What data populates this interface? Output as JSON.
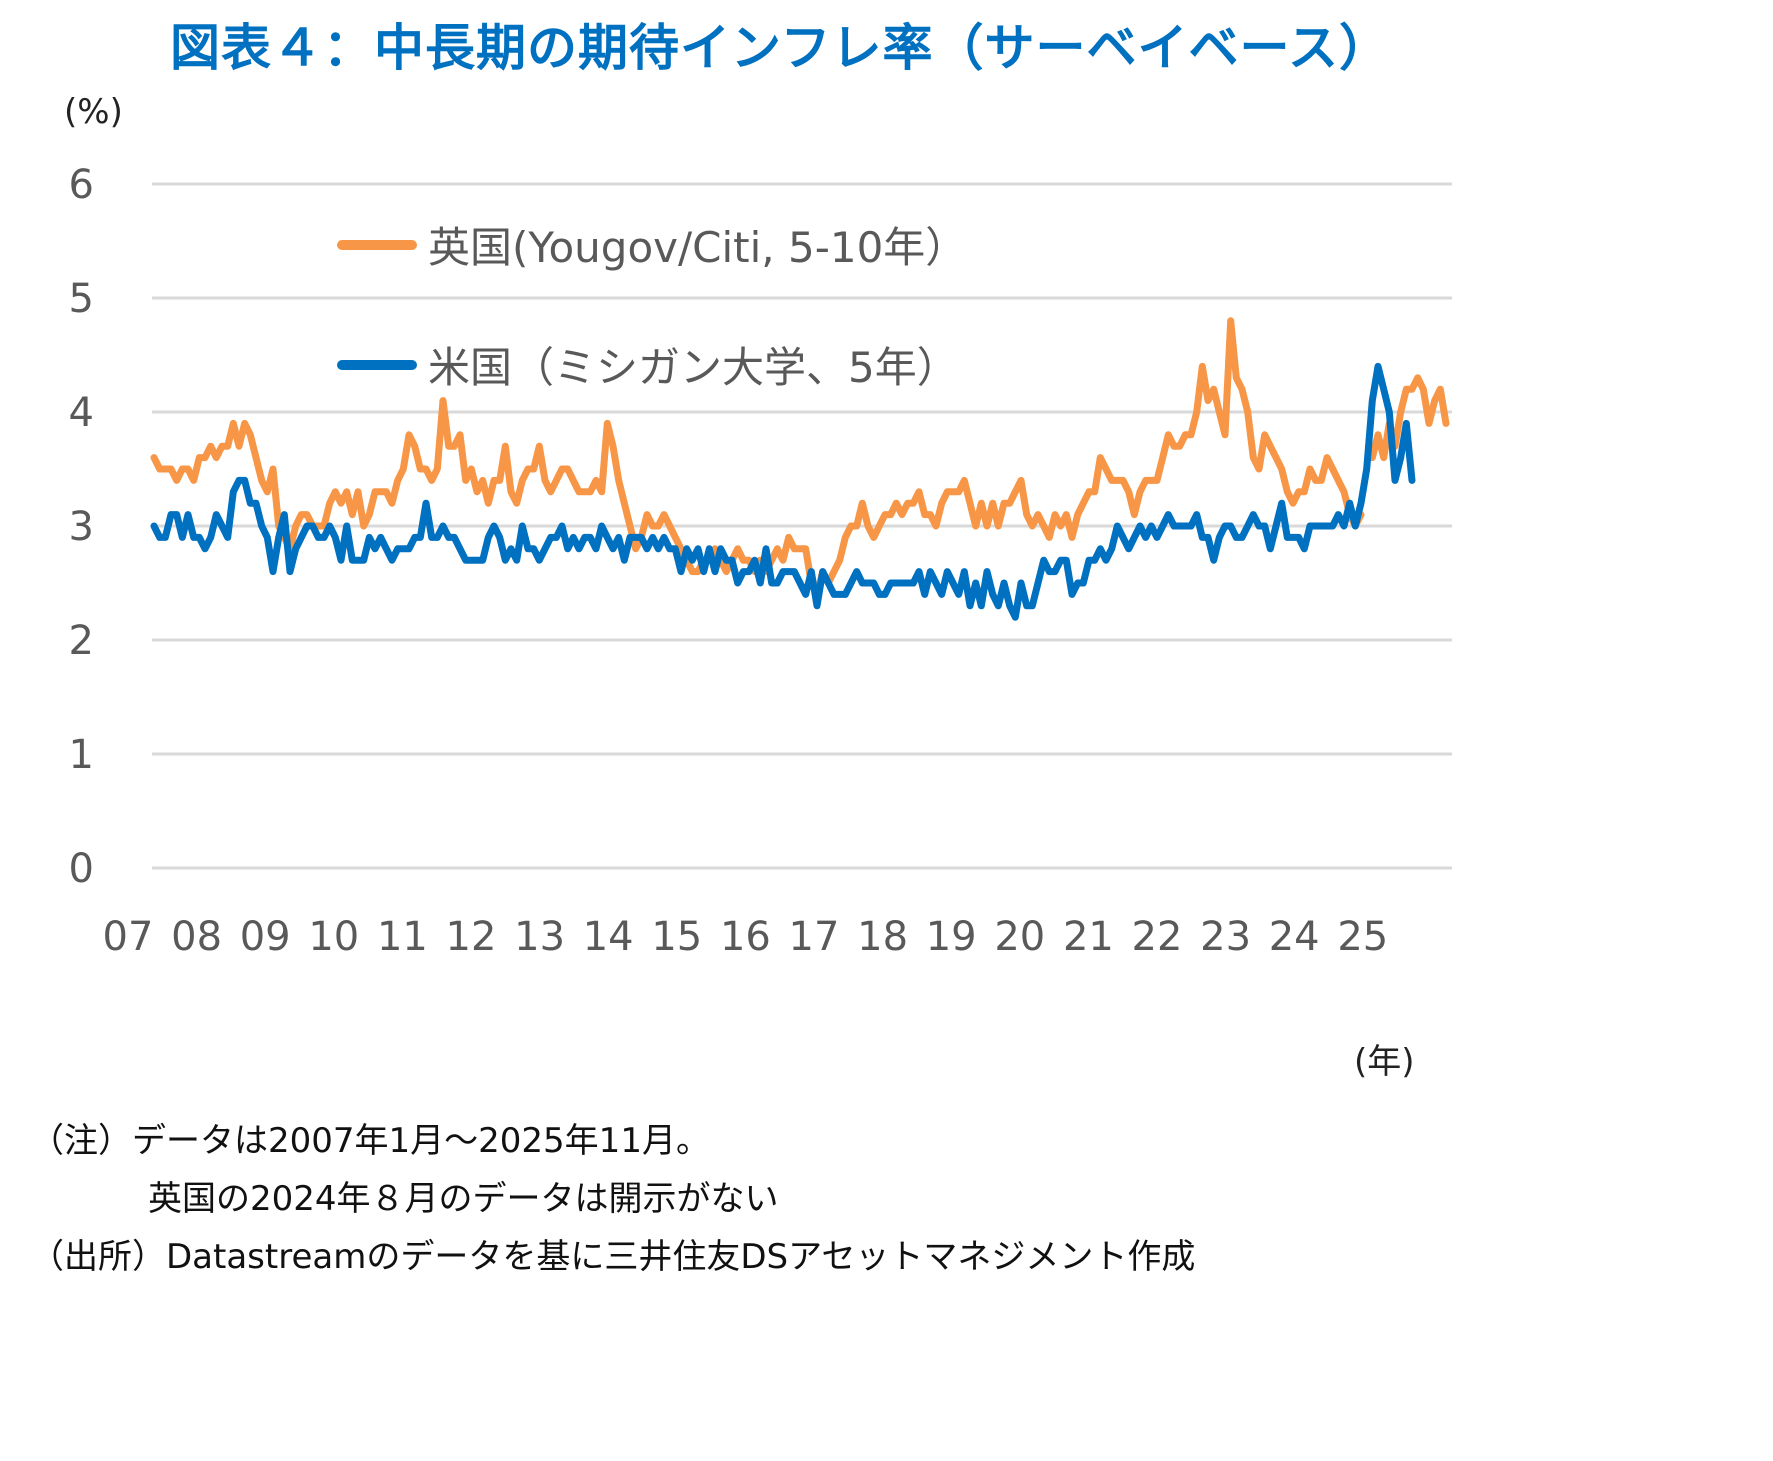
{
  "title": "図表４：中長期の期待インフレ率（サーベイベース）",
  "y_unit": "(%)",
  "x_unit": "(年)",
  "notes": {
    "note_line1": "（注）データは2007年1月～2025年11月。",
    "note_line2": "英国の2024年８月のデータは開示がない",
    "source": "（出所）Datastreamのデータを基に三井住友DSアセットマネジメント作成"
  },
  "colors": {
    "title": "#0070C0",
    "uk": "#F79646",
    "us": "#0070C0",
    "grid": "#D9D9D9",
    "axis_text": "#595959"
  },
  "chart_data": {
    "type": "line",
    "title": "図表４：中長期の期待インフレ率（サーベイベース）",
    "xlabel": "(年)",
    "ylabel": "(%)",
    "ylim": [
      0,
      6
    ],
    "yticks": [
      0,
      1,
      2,
      3,
      4,
      5,
      6
    ],
    "xticks": [
      "07",
      "08",
      "09",
      "10",
      "11",
      "12",
      "13",
      "14",
      "15",
      "16",
      "17",
      "18",
      "19",
      "20",
      "21",
      "22",
      "23",
      "24",
      "25"
    ],
    "grid": true,
    "legend_position": "upper-left inside",
    "x_start": "2007-01",
    "x_end": "2025-11",
    "frequency": "monthly",
    "series": [
      {
        "name": "英国(Yougov/Citi, 5-10年)",
        "color": "#F79646",
        "values": [
          3.6,
          3.5,
          3.5,
          3.5,
          3.4,
          3.5,
          3.5,
          3.4,
          3.6,
          3.6,
          3.7,
          3.6,
          3.7,
          3.7,
          3.9,
          3.7,
          3.9,
          3.8,
          3.6,
          3.4,
          3.3,
          3.5,
          3.0,
          2.9,
          2.8,
          3.0,
          3.1,
          3.1,
          3.0,
          3.0,
          3.0,
          3.2,
          3.3,
          3.2,
          3.3,
          3.1,
          3.3,
          3.0,
          3.1,
          3.3,
          3.3,
          3.3,
          3.2,
          3.4,
          3.5,
          3.8,
          3.7,
          3.5,
          3.5,
          3.4,
          3.5,
          4.1,
          3.7,
          3.7,
          3.8,
          3.4,
          3.5,
          3.3,
          3.4,
          3.2,
          3.4,
          3.4,
          3.7,
          3.3,
          3.2,
          3.4,
          3.5,
          3.5,
          3.7,
          3.4,
          3.3,
          3.4,
          3.5,
          3.5,
          3.4,
          3.3,
          3.3,
          3.3,
          3.4,
          3.3,
          3.9,
          3.7,
          3.4,
          3.2,
          3.0,
          2.8,
          2.9,
          3.1,
          3.0,
          3.0,
          3.1,
          3.0,
          2.9,
          2.8,
          2.7,
          2.6,
          2.6,
          2.7,
          2.7,
          2.8,
          2.7,
          2.6,
          2.7,
          2.8,
          2.7,
          2.7,
          2.6,
          2.7,
          2.6,
          2.7,
          2.8,
          2.7,
          2.9,
          2.8,
          2.8,
          2.8,
          2.5,
          2.4,
          2.6,
          2.5,
          2.6,
          2.7,
          2.9,
          3.0,
          3.0,
          3.2,
          3.0,
          2.9,
          3.0,
          3.1,
          3.1,
          3.2,
          3.1,
          3.2,
          3.2,
          3.3,
          3.1,
          3.1,
          3.0,
          3.2,
          3.3,
          3.3,
          3.3,
          3.4,
          3.2,
          3.0,
          3.2,
          3.0,
          3.2,
          3.0,
          3.2,
          3.2,
          3.3,
          3.4,
          3.1,
          3.0,
          3.1,
          3.0,
          2.9,
          3.1,
          3.0,
          3.1,
          2.9,
          3.1,
          3.2,
          3.3,
          3.3,
          3.6,
          3.5,
          3.4,
          3.4,
          3.4,
          3.3,
          3.1,
          3.3,
          3.4,
          3.4,
          3.4,
          3.6,
          3.8,
          3.7,
          3.7,
          3.8,
          3.8,
          4.0,
          4.4,
          4.1,
          4.2,
          4.0,
          3.8,
          4.8,
          4.3,
          4.2,
          4.0,
          3.6,
          3.5,
          3.8,
          3.7,
          3.6,
          3.5,
          3.3,
          3.2,
          3.3,
          3.3,
          3.5,
          3.4,
          3.4,
          3.6,
          3.5,
          3.4,
          3.3,
          3.1,
          3.0,
          3.1,
          null,
          3.6,
          3.8,
          3.6,
          3.9,
          3.7,
          4.0,
          4.2,
          4.2,
          4.3,
          4.2,
          3.9,
          4.1,
          4.2,
          3.9
        ]
      },
      {
        "name": "米国（ミシガン大学、5年）",
        "color": "#0070C0",
        "values": [
          3.0,
          2.9,
          2.9,
          3.1,
          3.1,
          2.9,
          3.1,
          2.9,
          2.9,
          2.8,
          2.9,
          3.1,
          3.0,
          2.9,
          3.3,
          3.4,
          3.4,
          3.2,
          3.2,
          3.0,
          2.9,
          2.6,
          2.9,
          3.1,
          2.6,
          2.8,
          2.9,
          3.0,
          3.0,
          2.9,
          2.9,
          3.0,
          2.9,
          2.7,
          3.0,
          2.7,
          2.7,
          2.7,
          2.9,
          2.8,
          2.9,
          2.8,
          2.7,
          2.8,
          2.8,
          2.8,
          2.9,
          2.9,
          3.2,
          2.9,
          2.9,
          3.0,
          2.9,
          2.9,
          2.8,
          2.7,
          2.7,
          2.7,
          2.7,
          2.9,
          3.0,
          2.9,
          2.7,
          2.8,
          2.7,
          3.0,
          2.8,
          2.8,
          2.7,
          2.8,
          2.9,
          2.9,
          3.0,
          2.8,
          2.9,
          2.8,
          2.9,
          2.9,
          2.8,
          3.0,
          2.9,
          2.8,
          2.9,
          2.7,
          2.9,
          2.9,
          2.9,
          2.8,
          2.9,
          2.8,
          2.9,
          2.8,
          2.8,
          2.6,
          2.8,
          2.7,
          2.8,
          2.6,
          2.8,
          2.6,
          2.8,
          2.7,
          2.7,
          2.5,
          2.6,
          2.6,
          2.7,
          2.5,
          2.8,
          2.5,
          2.5,
          2.6,
          2.6,
          2.6,
          2.5,
          2.4,
          2.6,
          2.3,
          2.6,
          2.5,
          2.4,
          2.4,
          2.4,
          2.5,
          2.6,
          2.5,
          2.5,
          2.5,
          2.4,
          2.4,
          2.5,
          2.5,
          2.5,
          2.5,
          2.5,
          2.6,
          2.4,
          2.6,
          2.5,
          2.4,
          2.6,
          2.5,
          2.4,
          2.6,
          2.3,
          2.5,
          2.3,
          2.6,
          2.4,
          2.3,
          2.5,
          2.3,
          2.2,
          2.5,
          2.3,
          2.3,
          2.5,
          2.7,
          2.6,
          2.6,
          2.7,
          2.7,
          2.4,
          2.5,
          2.5,
          2.7,
          2.7,
          2.8,
          2.7,
          2.8,
          3.0,
          2.9,
          2.8,
          2.9,
          3.0,
          2.9,
          3.0,
          2.9,
          3.0,
          3.1,
          3.0,
          3.0,
          3.0,
          3.0,
          3.1,
          2.9,
          2.9,
          2.7,
          2.9,
          3.0,
          3.0,
          2.9,
          2.9,
          3.0,
          3.1,
          3.0,
          3.0,
          2.8,
          3.0,
          3.2,
          2.9,
          2.9,
          2.9,
          2.8,
          3.0,
          3.0,
          3.0,
          3.0,
          3.0,
          3.1,
          3.0,
          3.2,
          3.0,
          3.2,
          3.5,
          4.1,
          4.4,
          4.2,
          4.0,
          3.4,
          3.6,
          3.9,
          3.4
        ]
      }
    ]
  },
  "legend": {
    "uk_label": "英国(Yougov/Citi, 5-10年）",
    "us_label": "米国（ミシガン大学、5年）"
  }
}
